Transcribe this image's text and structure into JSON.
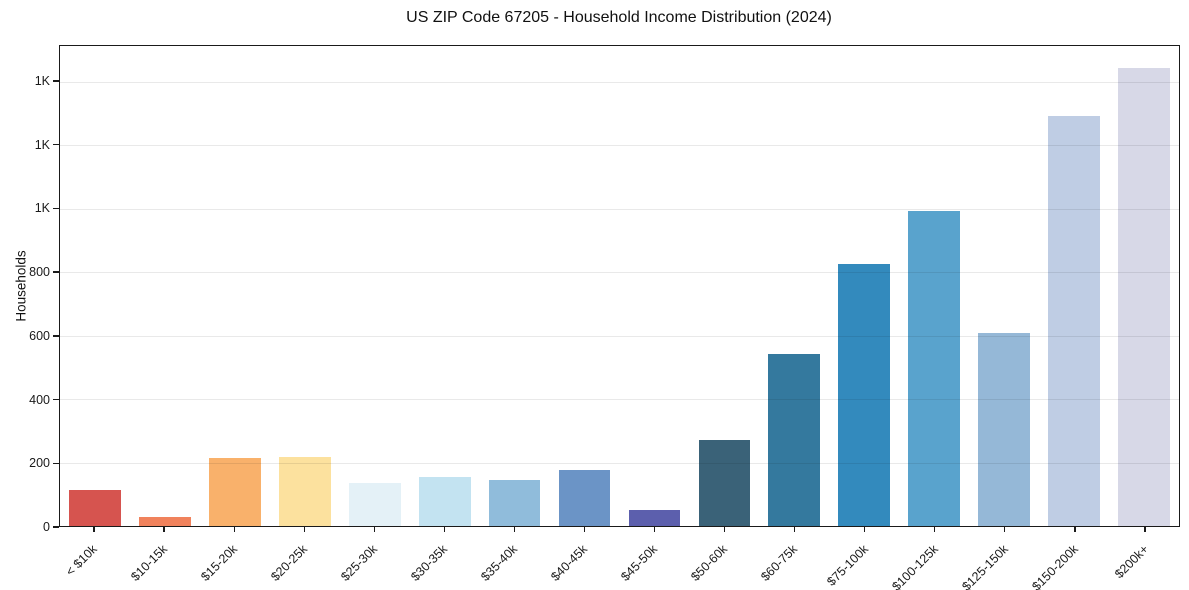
{
  "chart_data": {
    "type": "bar",
    "title": "US ZIP Code 67205 - Household Income Distribution (2024)",
    "xlabel": "",
    "ylabel": "Households",
    "categories": [
      "< $10k",
      "$10-15k",
      "$15-20k",
      "$20-25k",
      "$25-30k",
      "$30-35k",
      "$35-40k",
      "$40-45k",
      "$45-50k",
      "$50-60k",
      "$60-75k",
      "$75-100k",
      "$100-125k",
      "$125-150k",
      "$150-200k",
      "$200k+"
    ],
    "values": [
      112,
      29,
      215,
      216,
      136,
      153,
      146,
      176,
      51,
      272,
      541,
      826,
      992,
      608,
      1291,
      1444
    ],
    "bar_colors": [
      "#d6544f",
      "#f0825c",
      "#f9b16b",
      "#fce19e",
      "#e4f1f7",
      "#c3e3f1",
      "#90bcdb",
      "#6b94c6",
      "#5c5fad",
      "#3a6278",
      "#34799e",
      "#338abd",
      "#59a3cd",
      "#95b8d7",
      "#bfcde4",
      "#d7d8e7"
    ],
    "ylim": [
      0,
      1513
    ],
    "yticks": {
      "values": [
        0,
        200,
        400,
        600,
        800,
        1000,
        1200,
        1400
      ],
      "labels": [
        "0",
        "200",
        "400",
        "600",
        "800",
        "1K",
        "1K",
        "1K"
      ]
    },
    "grid": "horizontal",
    "legend": "none",
    "colors": {
      "background": "#ffffff",
      "spine": "#1a1a1a",
      "gridline": "#e9e9e9",
      "tick_text": "#1a1a1a"
    }
  }
}
